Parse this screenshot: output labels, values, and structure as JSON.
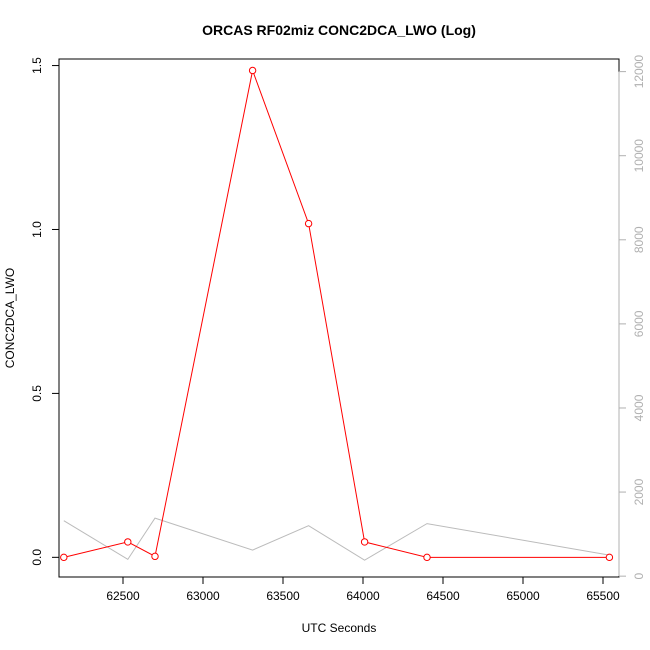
{
  "chart_data": {
    "type": "line",
    "title": "ORCAS RF02miz CONC2DCA_LWO (Log)",
    "xlabel": "UTC Seconds",
    "ylabel": "CONC2DCA_LWO",
    "xlim": [
      62100,
      65600
    ],
    "ylim": [
      -0.06,
      1.52
    ],
    "y2lim": [
      -20,
      12300
    ],
    "x_ticks": [
      62500,
      63000,
      63500,
      64000,
      64500,
      65000,
      65500
    ],
    "y_ticks": [
      0.0,
      0.5,
      1.0,
      1.5
    ],
    "y2_ticks": [
      0,
      2000,
      4000,
      6000,
      8000,
      10000,
      12000
    ],
    "grid": false,
    "series": [
      {
        "axis": "left",
        "color": "#ff0000",
        "marker": "open-circle",
        "x": [
          62130,
          62530,
          62700,
          63310,
          63660,
          64010,
          64400,
          65540
        ],
        "values": [
          0.0,
          0.047,
          0.003,
          1.485,
          1.018,
          0.047,
          0.0,
          0.0
        ]
      },
      {
        "axis": "right",
        "color": "#bbbbbb",
        "marker": "none",
        "x": [
          62130,
          62530,
          62700,
          63310,
          63660,
          64010,
          64400,
          65540
        ],
        "values": [
          1320,
          400,
          1380,
          620,
          1200,
          380,
          1250,
          500
        ]
      }
    ]
  }
}
